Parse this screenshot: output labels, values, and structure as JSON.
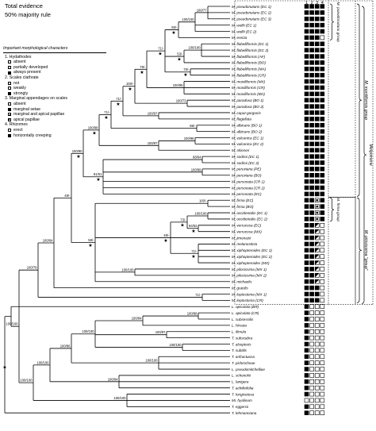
{
  "title": {
    "line1": "Total evidence",
    "line2": "50% majority rule"
  },
  "legend": {
    "heading": "Important morphological characters",
    "chars": [
      {
        "label": "1. Hydathodes",
        "states": [
          {
            "label": "absent",
            "swatch": "white"
          },
          {
            "label": "partially developed",
            "swatch": "white"
          },
          {
            "label": "always present",
            "swatch": "black"
          }
        ]
      },
      {
        "label": "2. Scales clathrate",
        "states": [
          {
            "label": "not",
            "swatch": "white"
          },
          {
            "label": "weakly",
            "swatch": "white"
          },
          {
            "label": "strongly",
            "swatch": "black"
          }
        ]
      },
      {
        "label": "3. Marginal appendages on scales",
        "states": [
          {
            "label": "absent",
            "swatch": "white"
          },
          {
            "label": "marginal setae",
            "swatch": "black"
          },
          {
            "label": "marginal and apical papillae",
            "swatch": "inner"
          },
          {
            "label": "apical papillae",
            "swatch": "half"
          }
        ]
      },
      {
        "label": "4. Rhizomes",
        "states": [
          {
            "label": "erect",
            "swatch": "white"
          },
          {
            "label": "horizontally creeping",
            "swatch": "black"
          }
        ]
      }
    ]
  },
  "column_numbers": [
    "1",
    "2",
    "3",
    "4"
  ],
  "taxa": [
    {
      "name": "M. pseudonutans (EC 1)",
      "m": "BBBB"
    },
    {
      "name": "M. pseudonutans (EC 2)",
      "m": "BBBB"
    },
    {
      "name": "M. pseudonutans (EC 3)",
      "m": "BBBB"
    },
    {
      "name": "M. wolfii (EC 1)",
      "m": "BBBB"
    },
    {
      "name": "M. wolfii (EC 2)",
      "m": "BBBB"
    },
    {
      "name": "M. erecta",
      "m": "BBBW"
    },
    {
      "name": "M. flabelliformis (EC 1)",
      "m": "BBBB"
    },
    {
      "name": "M. flabelliformis (EC 2)",
      "m": "BBBB"
    },
    {
      "name": "M. flabelliformis (AF)",
      "m": "BBBB"
    },
    {
      "name": "M. flabelliformis (BO)",
      "m": "BBBB"
    },
    {
      "name": "M. flabelliformis (MA)",
      "m": "BBBB"
    },
    {
      "name": "M. flabelliformis (CR)",
      "m": "BBBB"
    },
    {
      "name": "M. moniliformis (MX)",
      "m": "BBBB"
    },
    {
      "name": "M. moniliformis (CR)",
      "m": "BBBB"
    },
    {
      "name": "M. moniliformis (BO)",
      "m": "BBBB"
    },
    {
      "name": "M. paradoxa (BO 1)",
      "m": "BBBB"
    },
    {
      "name": "M. paradoxa (BO 2)",
      "m": "BBBB"
    },
    {
      "name": "M. caput-gorgonis",
      "m": "BBBB"
    },
    {
      "name": "M. flagellata",
      "m": "BBBB"
    },
    {
      "name": "M. albicans (BO 1)",
      "m": "BBBB"
    },
    {
      "name": "M. albicans (BO 2)",
      "m": "BBBB"
    },
    {
      "name": "M. vulcanica (EC 1)",
      "m": "BBBB"
    },
    {
      "name": "M. vulcanica (EC 2)",
      "m": "BBBB"
    },
    {
      "name": "M. skinneri",
      "m": "BBBB"
    },
    {
      "name": "M. sodiroi (EC 1)",
      "m": "BBBB"
    },
    {
      "name": "M. sodiroi (EC 2)",
      "m": "BBBB"
    },
    {
      "name": "M. peruviana (PE)",
      "m": "BBBB"
    },
    {
      "name": "M. peruviana (BO)",
      "m": "BBBB"
    },
    {
      "name": "M. personata (CR 1)",
      "m": "BBBB"
    },
    {
      "name": "M. personata (CR 2)",
      "m": "BBBB"
    },
    {
      "name": "M. personata (EC)",
      "m": "BBBB"
    },
    {
      "name": "M. firma (EC)",
      "m": "BBQB"
    },
    {
      "name": "M. firma (BO)",
      "m": "BBQB"
    },
    {
      "name": "M. occidentalis (EC 1)",
      "m": "BBQB"
    },
    {
      "name": "M. occidentalis (EC 2)",
      "m": "BBQB"
    },
    {
      "name": "M. verrucosa (EC)",
      "m": "BBHW"
    },
    {
      "name": "M. verrucosa (MX)",
      "m": "BBHW"
    },
    {
      "name": "M. jimenezii",
      "m": "BBHW"
    },
    {
      "name": "M. melanosticta",
      "m": "BBHW"
    },
    {
      "name": "M. xiphopteroides (EC 1)",
      "m": "BBHW"
    },
    {
      "name": "M. xiphopteroides (EC 2)",
      "m": "BBHW"
    },
    {
      "name": "M. xiphopteroides (MX)",
      "m": "BBHW"
    },
    {
      "name": "M. pilosissima (MX 1)",
      "m": "BBHW"
    },
    {
      "name": "M. pilosissima (MX 2)",
      "m": "BBHW"
    },
    {
      "name": "M. michaelis",
      "m": "BBHW"
    },
    {
      "name": "M. gracilis",
      "m": "BBBW"
    },
    {
      "name": "M. leptostoma (MX 1)",
      "m": "BBBW"
    },
    {
      "name": "M. leptostoma (CR)",
      "m": "BBBW"
    },
    {
      "name": "L. apiculata (BR)",
      "m": "BWWW"
    },
    {
      "name": "L. apiculata (CR)",
      "m": "BWWW"
    },
    {
      "name": "L. subsessilis",
      "m": "BWWW"
    },
    {
      "name": "L. hirsuta",
      "m": "BWWW"
    },
    {
      "name": "L. ilimula",
      "m": "BWWW"
    },
    {
      "name": "T. subscabra",
      "m": "BWWW"
    },
    {
      "name": "T. alsopteris",
      "m": "BWWW"
    },
    {
      "name": "T. subtilis",
      "m": "BWWW"
    },
    {
      "name": "T. anfractuosa",
      "m": "BWWW"
    },
    {
      "name": "T. pichinchnae",
      "m": "BWWW"
    },
    {
      "name": "L. pseudomitchelliae",
      "m": "BWWW"
    },
    {
      "name": "L. schenckii",
      "m": "BWWW"
    },
    {
      "name": "L. lanigera",
      "m": "BWWW"
    },
    {
      "name": "T. achilleifolia",
      "m": "BWWW"
    },
    {
      "name": "T. longisetosa",
      "m": "BWWW"
    },
    {
      "name": "Mi. hyalinum",
      "m": "WWWW"
    },
    {
      "name": "T. eggersii",
      "m": "BWWW"
    },
    {
      "name": "T. lehmanniana",
      "m": "BWWW"
    }
  ],
  "groups": [
    {
      "label": "M. pseudonutans group"
    },
    {
      "label": "M. moniliformis group"
    },
    {
      "label": "Melpomene"
    },
    {
      "label": "M. firma group"
    },
    {
      "label": "M. pilosissima \"group\""
    }
  ],
  "support_labels": [
    "100/77",
    "100/100",
    "100/100",
    "65/-",
    "100/100",
    "53/-",
    "76/-",
    "71/-",
    "100/95",
    "100/73",
    "71/-",
    "79/-",
    "100/-",
    "100/97",
    "86/-",
    "71/-",
    "71/-",
    "100/98",
    "100/97",
    "100/98",
    "81/51",
    "100/90",
    "98/64",
    "100/99",
    "100/-",
    "100/100",
    "73/-",
    "84/52",
    "71/-",
    "58/-",
    "48/-",
    "100/64",
    "100/79",
    "100/84",
    "100/98",
    "100/100",
    "100/97",
    "100/100",
    "100/86",
    "100/100",
    "100/100",
    "100/94",
    "100/100",
    "100/100",
    "100/100",
    "100/99"
  ],
  "colors": {
    "ink": "#000000",
    "paper": "#ffffff"
  }
}
